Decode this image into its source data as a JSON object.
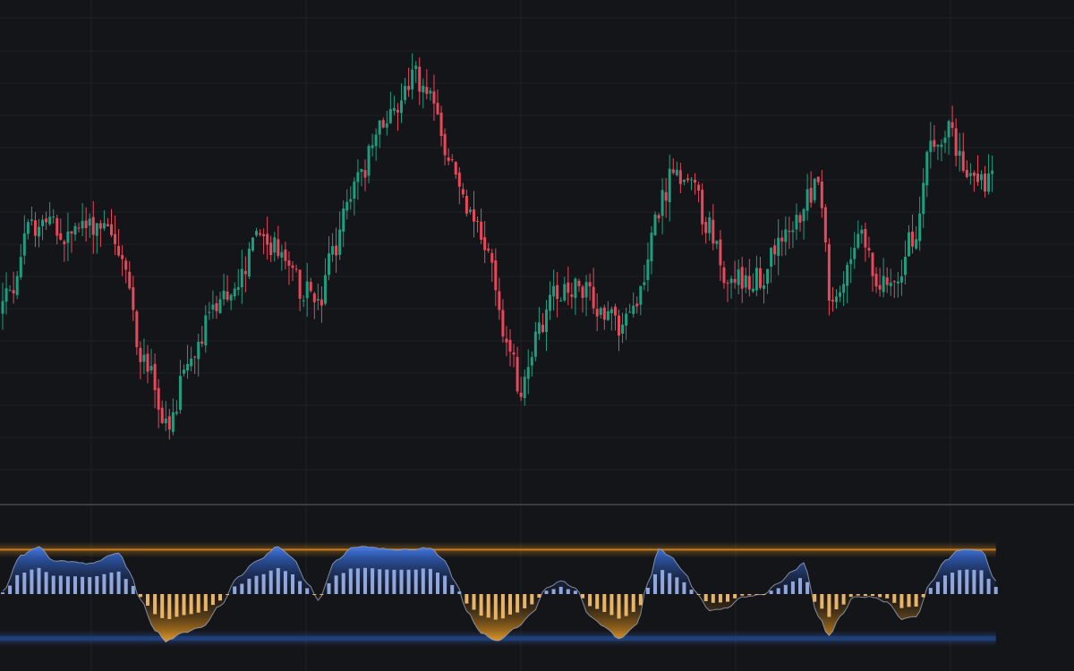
{
  "theme": {
    "background": "#141519",
    "grid": "#1f2128",
    "separator": "#3a3c44",
    "up": "#1d9e80",
    "down": "#e8485a",
    "hist_pos": "#8fa7dc",
    "hist_neg": "#e8b46a",
    "area_pos": "#2f6be0",
    "area_neg": "#d9931e",
    "upper_band": "#c97a1e",
    "lower_band": "#1f3f78",
    "osc_line": "#9aa6bd"
  },
  "chart_data": [
    {
      "type": "candlestick",
      "title": "",
      "xlabel": "",
      "ylabel": "",
      "y_range": [
        0,
        100
      ],
      "grid": true,
      "legend": "none",
      "anchors": [
        [
          0,
          40
        ],
        [
          3,
          45
        ],
        [
          8,
          58
        ],
        [
          12,
          62
        ],
        [
          18,
          57
        ],
        [
          24,
          60
        ],
        [
          30,
          61
        ],
        [
          34,
          51
        ],
        [
          40,
          28
        ],
        [
          47,
          12
        ],
        [
          52,
          28
        ],
        [
          60,
          41
        ],
        [
          66,
          47
        ],
        [
          72,
          58
        ],
        [
          78,
          53
        ],
        [
          84,
          45
        ],
        [
          88,
          41
        ],
        [
          92,
          53
        ],
        [
          98,
          70
        ],
        [
          108,
          86
        ],
        [
          114,
          95
        ],
        [
          120,
          88
        ],
        [
          124,
          75
        ],
        [
          130,
          64
        ],
        [
          134,
          55
        ],
        [
          140,
          34
        ],
        [
          144,
          22
        ],
        [
          148,
          34
        ],
        [
          154,
          45
        ],
        [
          160,
          46
        ],
        [
          166,
          40
        ],
        [
          172,
          36
        ],
        [
          176,
          44
        ],
        [
          182,
          64
        ],
        [
          186,
          72
        ],
        [
          190,
          71
        ],
        [
          196,
          60
        ],
        [
          200,
          48
        ],
        [
          206,
          48
        ],
        [
          210,
          47
        ],
        [
          214,
          54
        ],
        [
          218,
          58
        ],
        [
          224,
          68
        ],
        [
          226,
          72
        ],
        [
          230,
          40
        ],
        [
          234,
          48
        ],
        [
          238,
          58
        ],
        [
          242,
          48
        ],
        [
          248,
          46
        ],
        [
          252,
          58
        ],
        [
          258,
          80
        ],
        [
          262,
          83
        ],
        [
          266,
          74
        ],
        [
          270,
          70
        ]
      ]
    },
    {
      "type": "oscillator",
      "title": "",
      "y_range": [
        -100,
        100
      ],
      "upper_level": 80,
      "lower_level": -80,
      "anchors": [
        [
          0,
          5
        ],
        [
          5,
          70
        ],
        [
          10,
          85
        ],
        [
          14,
          60
        ],
        [
          24,
          55
        ],
        [
          32,
          75
        ],
        [
          35,
          40
        ],
        [
          38,
          -10
        ],
        [
          42,
          -65
        ],
        [
          45,
          -85
        ],
        [
          50,
          -70
        ],
        [
          55,
          -60
        ],
        [
          60,
          -20
        ],
        [
          65,
          30
        ],
        [
          70,
          60
        ],
        [
          76,
          85
        ],
        [
          80,
          65
        ],
        [
          84,
          20
        ],
        [
          87,
          -10
        ],
        [
          92,
          60
        ],
        [
          97,
          85
        ],
        [
          110,
          80
        ],
        [
          118,
          83
        ],
        [
          122,
          60
        ],
        [
          125,
          20
        ],
        [
          128,
          -30
        ],
        [
          132,
          -70
        ],
        [
          136,
          -85
        ],
        [
          142,
          -60
        ],
        [
          146,
          -35
        ],
        [
          150,
          10
        ],
        [
          154,
          25
        ],
        [
          158,
          10
        ],
        [
          162,
          -40
        ],
        [
          166,
          -60
        ],
        [
          170,
          -80
        ],
        [
          175,
          -55
        ],
        [
          178,
          20
        ],
        [
          181,
          80
        ],
        [
          184,
          70
        ],
        [
          188,
          40
        ],
        [
          191,
          5
        ],
        [
          195,
          -30
        ],
        [
          200,
          -25
        ],
        [
          204,
          -5
        ],
        [
          210,
          0
        ],
        [
          214,
          20
        ],
        [
          218,
          40
        ],
        [
          221,
          55
        ],
        [
          225,
          -40
        ],
        [
          228,
          -75
        ],
        [
          231,
          -40
        ],
        [
          235,
          -5
        ],
        [
          240,
          -5
        ],
        [
          244,
          -15
        ],
        [
          248,
          -45
        ],
        [
          252,
          -40
        ],
        [
          256,
          20
        ],
        [
          260,
          60
        ],
        [
          264,
          80
        ],
        [
          270,
          78
        ],
        [
          274,
          25
        ]
      ]
    }
  ]
}
